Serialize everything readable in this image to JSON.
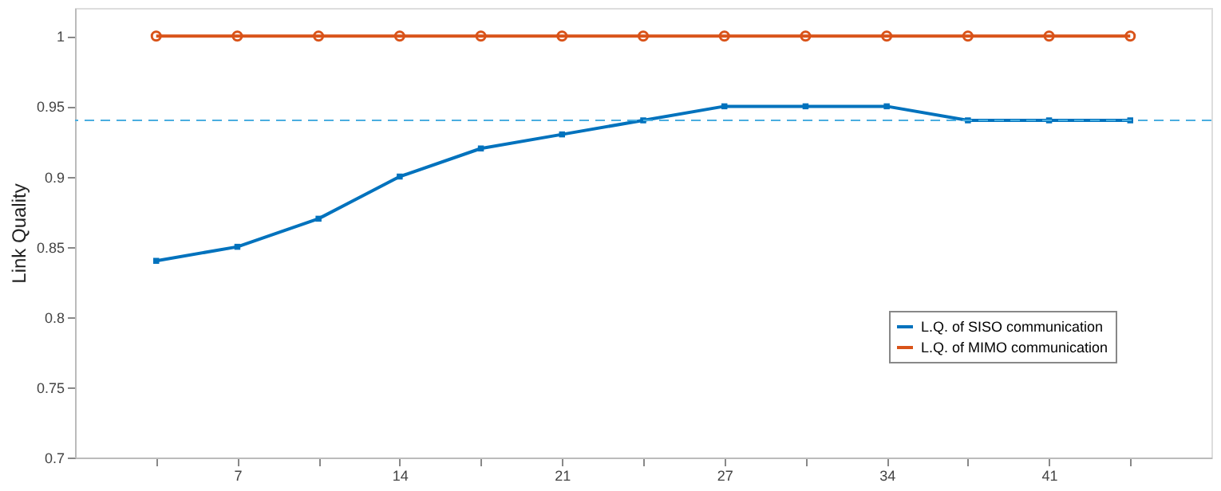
{
  "chart_data": {
    "type": "line",
    "ylabel": "Link Quality",
    "categories": [
      null,
      "7",
      null,
      "14",
      null,
      "21",
      null,
      "27",
      null,
      "34",
      null,
      "41",
      null
    ],
    "series": [
      {
        "name": "L.Q. of SISO communication",
        "color": "#0072bd",
        "marker": "square",
        "values": [
          0.84,
          0.85,
          0.87,
          0.9,
          0.92,
          0.93,
          0.94,
          0.95,
          0.95,
          0.95,
          0.94,
          0.94,
          0.94
        ]
      },
      {
        "name": "L.Q. of MIMO communication",
        "color": "#d95319",
        "marker": "circle",
        "values": [
          1,
          1,
          1,
          1,
          1,
          1,
          1,
          1,
          1,
          1,
          1,
          1,
          1
        ]
      }
    ],
    "ylim": [
      0.7,
      1.02
    ],
    "yticks": [
      0.7,
      0.75,
      0.8,
      0.85,
      0.9,
      0.95,
      1
    ],
    "ref_lines": [
      {
        "axis": "y",
        "value": 0.94,
        "color": "#4aaee0",
        "line_style": "dashed"
      }
    ],
    "grid": false,
    "legend": "bottom right",
    "line_style": "solid"
  }
}
